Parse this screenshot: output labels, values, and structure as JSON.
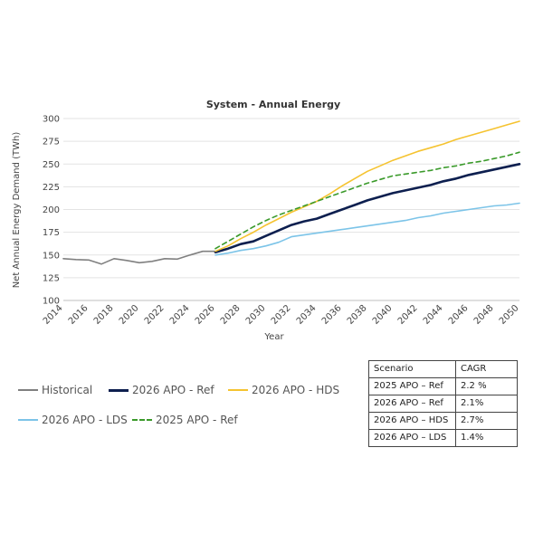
{
  "chart_data": {
    "type": "line",
    "title": "System - Annual Energy",
    "xlabel": "Year",
    "ylabel": "Net Annual Energy Demand (TWh)",
    "ylim": [
      100,
      300
    ],
    "yticks": [
      100,
      125,
      150,
      175,
      200,
      225,
      250,
      275,
      300
    ],
    "xlim": [
      2014,
      2050
    ],
    "xticks": [
      2014,
      2016,
      2018,
      2020,
      2022,
      2024,
      2026,
      2028,
      2030,
      2032,
      2034,
      2036,
      2038,
      2040,
      2042,
      2044,
      2046,
      2048,
      2050
    ],
    "legend_position": "bottom-left",
    "series": [
      {
        "name": "Historical",
        "color": "#808080",
        "style": "solid",
        "x": [
          2014,
          2015,
          2016,
          2017,
          2018,
          2019,
          2020,
          2021,
          2022,
          2023,
          2024,
          2025,
          2026
        ],
        "values": [
          146,
          145,
          144.5,
          140,
          146,
          144,
          141.5,
          143,
          146,
          145.5,
          150,
          154,
          154
        ]
      },
      {
        "name": "2026 APO - Ref",
        "color": "#0d1f4f",
        "style": "solid",
        "x": [
          2026,
          2027,
          2028,
          2029,
          2030,
          2031,
          2032,
          2033,
          2034,
          2035,
          2036,
          2037,
          2038,
          2039,
          2040,
          2041,
          2042,
          2043,
          2044,
          2045,
          2046,
          2047,
          2048,
          2049,
          2050
        ],
        "values": [
          153,
          157,
          162,
          165,
          171,
          177,
          183,
          187,
          190,
          195,
          200,
          205,
          210,
          214,
          218,
          221,
          224,
          227,
          231,
          234,
          238,
          241,
          244,
          247,
          250
        ]
      },
      {
        "name": "2026 APO - HDS",
        "color": "#f5c330",
        "style": "solid",
        "x": [
          2026,
          2027,
          2028,
          2029,
          2030,
          2031,
          2032,
          2033,
          2034,
          2035,
          2036,
          2037,
          2038,
          2039,
          2040,
          2041,
          2042,
          2043,
          2044,
          2045,
          2046,
          2047,
          2048,
          2049,
          2050
        ],
        "values": [
          154,
          160,
          168,
          175,
          183,
          190,
          197,
          203,
          209,
          217,
          226,
          234,
          242,
          248,
          254,
          259,
          264,
          268,
          272,
          277,
          281,
          285,
          289,
          293,
          297
        ]
      },
      {
        "name": "2026 APO - LDS",
        "color": "#7cc4e8",
        "style": "solid",
        "x": [
          2026,
          2027,
          2028,
          2029,
          2030,
          2031,
          2032,
          2033,
          2034,
          2035,
          2036,
          2037,
          2038,
          2039,
          2040,
          2041,
          2042,
          2043,
          2044,
          2045,
          2046,
          2047,
          2048,
          2049,
          2050
        ],
        "values": [
          150,
          152,
          155,
          157,
          160,
          164,
          170,
          172,
          174,
          176,
          178,
          180,
          182,
          184,
          186,
          188,
          191,
          193,
          196,
          198,
          200,
          202,
          204,
          205,
          207
        ]
      },
      {
        "name": "2025 APO - Ref",
        "color": "#3a9a2a",
        "style": "dashed",
        "x": [
          2026,
          2027,
          2028,
          2029,
          2030,
          2031,
          2032,
          2033,
          2034,
          2035,
          2036,
          2037,
          2038,
          2039,
          2040,
          2041,
          2042,
          2043,
          2044,
          2045,
          2046,
          2047,
          2048,
          2049,
          2050
        ],
        "values": [
          157,
          165,
          173,
          181,
          188,
          194,
          199,
          204,
          209,
          214,
          219,
          224,
          229,
          233,
          237,
          239,
          241,
          243,
          246,
          248,
          251,
          253,
          256,
          259,
          263
        ]
      }
    ]
  },
  "legend": [
    {
      "name": "Historical",
      "color": "#808080",
      "style": "solid"
    },
    {
      "name": "2026 APO - Ref",
      "color": "#0d1f4f",
      "style": "solid"
    },
    {
      "name": "2026 APO - HDS",
      "color": "#f5c330",
      "style": "solid"
    },
    {
      "name": "2026 APO - LDS",
      "color": "#7cc4e8",
      "style": "solid"
    },
    {
      "name": "2025 APO - Ref",
      "color": "#3a9a2a",
      "style": "dashed"
    }
  ],
  "cagr_table": {
    "headers": [
      "Scenario",
      "CAGR"
    ],
    "rows": [
      [
        "2025 APO – Ref",
        "2.2 %"
      ],
      [
        "2026 APO – Ref",
        "2.1%"
      ],
      [
        "2026 APO – HDS",
        "2.7%"
      ],
      [
        "2026 APO – LDS",
        "1.4%"
      ]
    ]
  }
}
